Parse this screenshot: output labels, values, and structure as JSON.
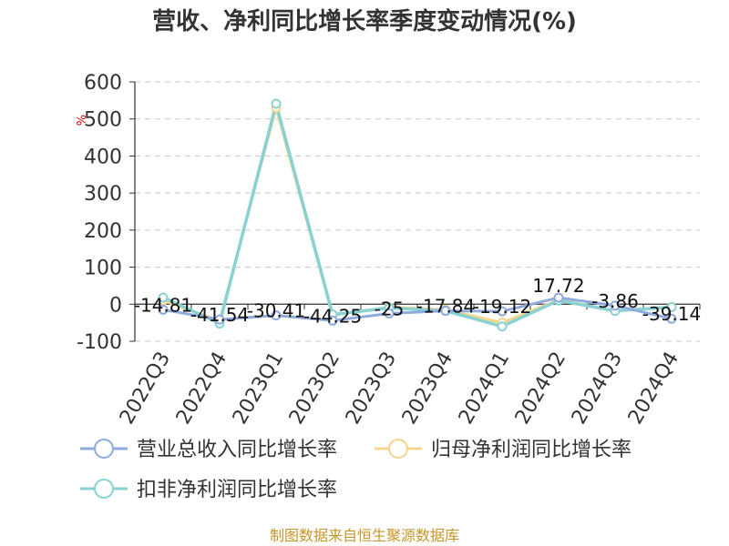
{
  "chart_data": {
    "type": "line",
    "title": "营收、净利同比增长率季度变动情况(%)",
    "ylabel": "%",
    "xlabel": "",
    "categories": [
      "2022Q3",
      "2022Q4",
      "2023Q1",
      "2023Q2",
      "2023Q3",
      "2023Q4",
      "2024Q1",
      "2024Q2",
      "2024Q3",
      "2024Q4"
    ],
    "ylim": [
      -100,
      600
    ],
    "yticks": [
      600,
      500,
      400,
      300,
      200,
      100,
      0,
      -100
    ],
    "grid": true,
    "legend_position": "bottom",
    "series": [
      {
        "name": "营业总收入同比增长率",
        "color": "#8faadc",
        "values": [
          -14.81,
          -41.54,
          -30.41,
          -44.25,
          -25,
          -17.84,
          -19.12,
          17.72,
          -3.86,
          -39.14
        ],
        "labels": [
          "-14.81",
          "-41.54",
          "-30.41",
          "-44.25",
          "-25",
          "-17.84",
          "-19.12",
          "17.72",
          "-3.86",
          "-39.14"
        ]
      },
      {
        "name": "归母净利润同比增长率",
        "color": "#f5d48c",
        "values": [
          10,
          -45,
          530,
          -30,
          -8,
          -15,
          -50,
          12,
          -18,
          -8
        ]
      },
      {
        "name": "扣非净利润同比增长率",
        "color": "#88d2d3",
        "values": [
          18,
          -52,
          541,
          -28,
          -10,
          -18,
          -60,
          10,
          -18,
          -8
        ]
      }
    ]
  },
  "source": "制图数据来自恒生聚源数据库"
}
